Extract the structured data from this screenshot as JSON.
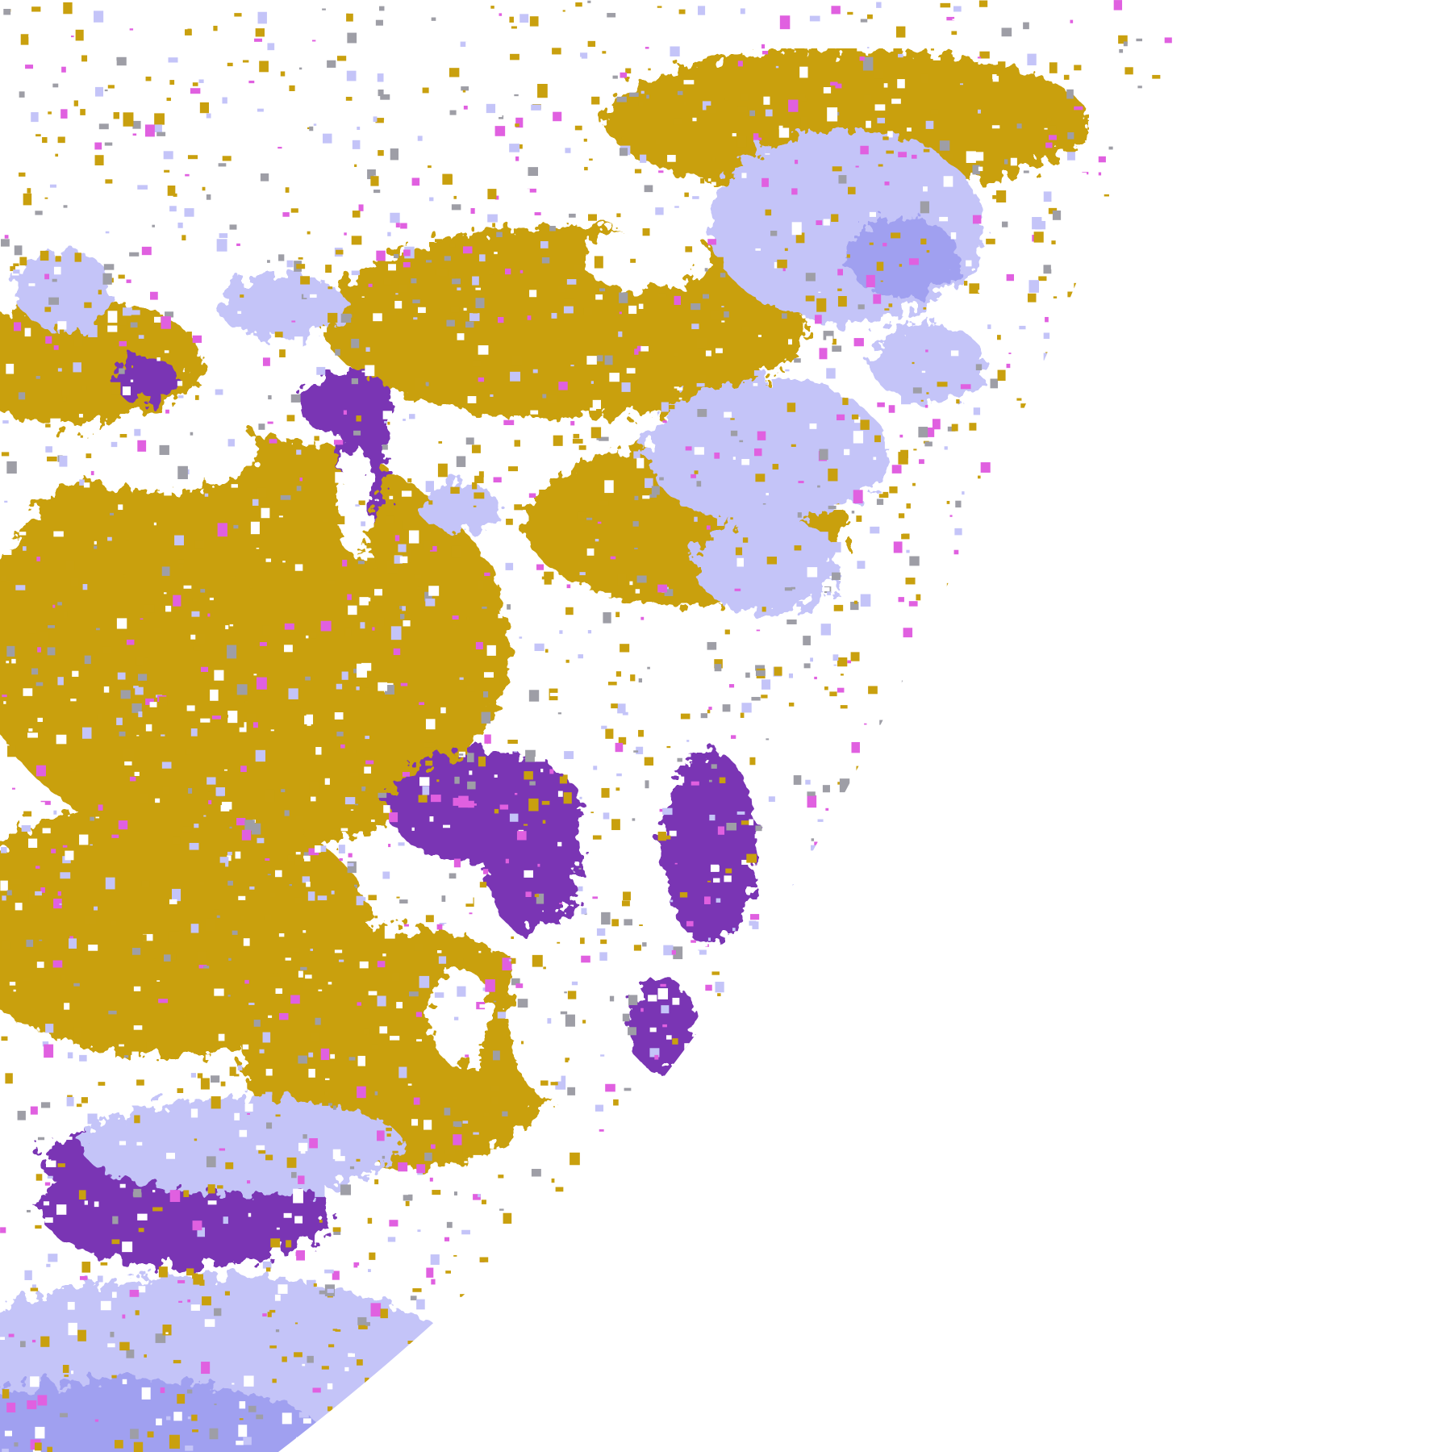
{
  "image": {
    "kind": "satellite cloud-classification composite, partial Earth disk",
    "colors": {
      "background": "#ffffff",
      "clear": "#ffffff",
      "low_cloud": "#c9a00e",
      "mid_cloud": "#9e9ea6",
      "high_thin_cloud": "#c4c4f8",
      "high_thick_cloud": "#a0a0f0",
      "deep_layer": "#7a35b4",
      "convective": "#e060e0"
    }
  }
}
